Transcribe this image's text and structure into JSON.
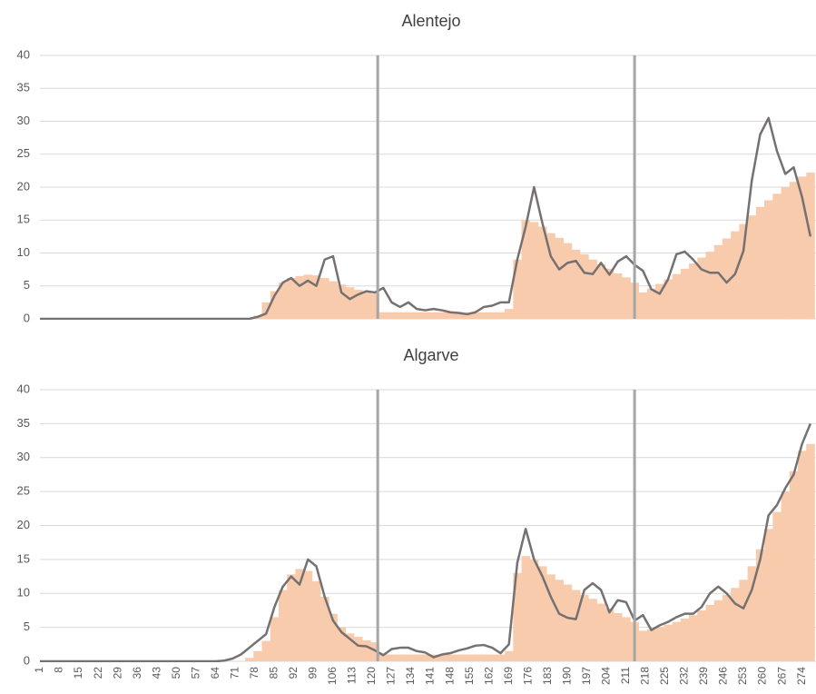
{
  "chart_data": [
    {
      "type": "combo",
      "title": "Alentejo",
      "x": [
        1,
        4,
        7,
        10,
        13,
        16,
        19,
        22,
        25,
        28,
        31,
        34,
        37,
        40,
        43,
        46,
        49,
        52,
        55,
        58,
        61,
        64,
        67,
        70,
        73,
        76,
        79,
        82,
        85,
        88,
        91,
        94,
        97,
        100,
        103,
        106,
        109,
        112,
        115,
        118,
        121,
        124,
        127,
        130,
        133,
        136,
        139,
        142,
        145,
        148,
        151,
        154,
        157,
        160,
        163,
        166,
        169,
        172,
        175,
        178,
        181,
        184,
        187,
        190,
        193,
        196,
        199,
        202,
        205,
        208,
        211,
        214,
        217,
        220,
        223,
        226,
        229,
        232,
        235,
        238,
        241,
        244,
        247,
        250,
        253,
        256,
        259,
        262,
        265,
        268,
        271,
        274,
        277
      ],
      "xlim": [
        1,
        279
      ],
      "ylim": [
        0,
        40
      ],
      "yticks": [
        0,
        5,
        10,
        15,
        20,
        25,
        30,
        35,
        40
      ],
      "grid": true,
      "reference_lines": [
        122,
        214
      ],
      "reference_color": "#a6a6a6",
      "series": [
        {
          "type": "bar",
          "color": "#f8cbad",
          "values": [
            0,
            0,
            0,
            0,
            0,
            0,
            0,
            0,
            0,
            0,
            0,
            0,
            0,
            0,
            0,
            0,
            0,
            0,
            0,
            0,
            0,
            0,
            0,
            0,
            0,
            0,
            0.5,
            2.5,
            4.2,
            5.5,
            6.2,
            6.5,
            6.7,
            6.6,
            6.2,
            5.7,
            5.2,
            4.8,
            4.4,
            4.1,
            3.8,
            1,
            1,
            1,
            1,
            1,
            1,
            1,
            1,
            1,
            1,
            1,
            1,
            1,
            1,
            1,
            1.5,
            9,
            15,
            14.7,
            14,
            13,
            12.3,
            11.5,
            10.5,
            9.8,
            9,
            8.3,
            7.6,
            6.9,
            6.3,
            5.5,
            4,
            4.6,
            5.3,
            6,
            6.8,
            7.6,
            8.4,
            9.3,
            10.2,
            11.2,
            12.2,
            13.3,
            14.4,
            15.7,
            17,
            18,
            19,
            20,
            20.8,
            21.6,
            22.2
          ]
        },
        {
          "type": "line",
          "color": "#767171",
          "values": [
            0,
            0,
            0,
            0,
            0,
            0,
            0,
            0,
            0,
            0,
            0,
            0,
            0,
            0,
            0,
            0,
            0,
            0,
            0,
            0,
            0,
            0,
            0,
            0,
            0,
            0,
            0.3,
            0.8,
            3.5,
            5.5,
            6.2,
            5,
            5.8,
            5,
            9,
            9.5,
            4,
            3,
            3.7,
            4.2,
            4,
            4.7,
            2.5,
            1.8,
            2.5,
            1.5,
            1.3,
            1.5,
            1.3,
            1,
            0.9,
            0.7,
            1,
            1.8,
            2,
            2.5,
            2.5,
            9,
            14,
            20,
            14.5,
            9.5,
            7.5,
            8.5,
            8.8,
            7,
            6.8,
            8.5,
            6.7,
            8.7,
            9.5,
            8.2,
            7.3,
            4.5,
            3.8,
            6,
            9.8,
            10.2,
            9,
            7.5,
            7,
            7,
            5.5,
            6.8,
            10.3,
            21,
            28,
            30.5,
            25.5,
            22,
            23,
            18.5,
            12.5
          ]
        }
      ]
    },
    {
      "type": "combo",
      "title": "Algarve",
      "x": [
        1,
        4,
        7,
        10,
        13,
        16,
        19,
        22,
        25,
        28,
        31,
        34,
        37,
        40,
        43,
        46,
        49,
        52,
        55,
        58,
        61,
        64,
        67,
        70,
        73,
        76,
        79,
        82,
        85,
        88,
        91,
        94,
        97,
        100,
        103,
        106,
        109,
        112,
        115,
        118,
        121,
        124,
        127,
        130,
        133,
        136,
        139,
        142,
        145,
        148,
        151,
        154,
        157,
        160,
        163,
        166,
        169,
        172,
        175,
        178,
        181,
        184,
        187,
        190,
        193,
        196,
        199,
        202,
        205,
        208,
        211,
        214,
        217,
        220,
        223,
        226,
        229,
        232,
        235,
        238,
        241,
        244,
        247,
        250,
        253,
        256,
        259,
        262,
        265,
        268,
        271,
        274,
        277
      ],
      "xlim": [
        1,
        279
      ],
      "xticks": [
        1,
        8,
        15,
        22,
        29,
        36,
        43,
        50,
        57,
        64,
        71,
        78,
        85,
        92,
        99,
        106,
        113,
        120,
        127,
        134,
        141,
        148,
        155,
        162,
        169,
        176,
        183,
        190,
        197,
        204,
        211,
        218,
        225,
        232,
        239,
        246,
        253,
        260,
        267,
        274
      ],
      "ylim": [
        0,
        40
      ],
      "yticks": [
        0,
        5,
        10,
        15,
        20,
        25,
        30,
        35,
        40
      ],
      "grid": true,
      "reference_lines": [
        122,
        214
      ],
      "reference_color": "#a6a6a6",
      "series": [
        {
          "type": "bar",
          "color": "#f8cbad",
          "values": [
            0,
            0,
            0,
            0,
            0,
            0,
            0,
            0,
            0,
            0,
            0,
            0,
            0,
            0,
            0,
            0,
            0,
            0,
            0,
            0,
            0,
            0,
            0,
            0,
            0,
            0.5,
            1.5,
            3,
            6.5,
            10.5,
            12.8,
            13.6,
            13.3,
            11.8,
            9.5,
            7,
            5,
            4.1,
            3.6,
            3.1,
            2.8,
            1,
            1,
            1,
            1,
            1,
            1,
            1,
            1,
            1,
            1,
            1,
            1,
            1,
            1,
            1,
            1.5,
            13,
            15.5,
            15,
            14,
            12.8,
            12,
            11.3,
            10.5,
            9.8,
            9.2,
            8.5,
            7.8,
            7.1,
            6.5,
            5.8,
            4.5,
            4.7,
            5,
            5.4,
            5.8,
            6.3,
            6.8,
            7.5,
            8.3,
            9,
            9.8,
            10.8,
            12,
            14,
            16.5,
            19.5,
            22,
            25,
            28,
            31,
            32
          ]
        },
        {
          "type": "line",
          "color": "#767171",
          "values": [
            0,
            0,
            0,
            0,
            0,
            0,
            0,
            0,
            0,
            0,
            0,
            0,
            0,
            0,
            0,
            0,
            0,
            0,
            0,
            0,
            0,
            0,
            0.1,
            0.4,
            1,
            2,
            3,
            4,
            8,
            11,
            12.5,
            11.3,
            15,
            14,
            9.5,
            6,
            4.3,
            3.3,
            2.3,
            2.2,
            1.6,
            0.9,
            1.8,
            2,
            2,
            1.5,
            1.3,
            0.6,
            1,
            1.2,
            1.6,
            1.9,
            2.3,
            2.4,
            2,
            1.2,
            2.5,
            14.5,
            19.5,
            15,
            12.5,
            9.5,
            7,
            6.4,
            6.2,
            10.5,
            11.5,
            10.5,
            7.2,
            9,
            8.7,
            6,
            6.8,
            4.6,
            5.3,
            5.8,
            6.5,
            7,
            7,
            8,
            10,
            11,
            10,
            8.5,
            7.8,
            10.5,
            15,
            21.5,
            23,
            25.5,
            27.5,
            32,
            35
          ]
        }
      ]
    }
  ]
}
